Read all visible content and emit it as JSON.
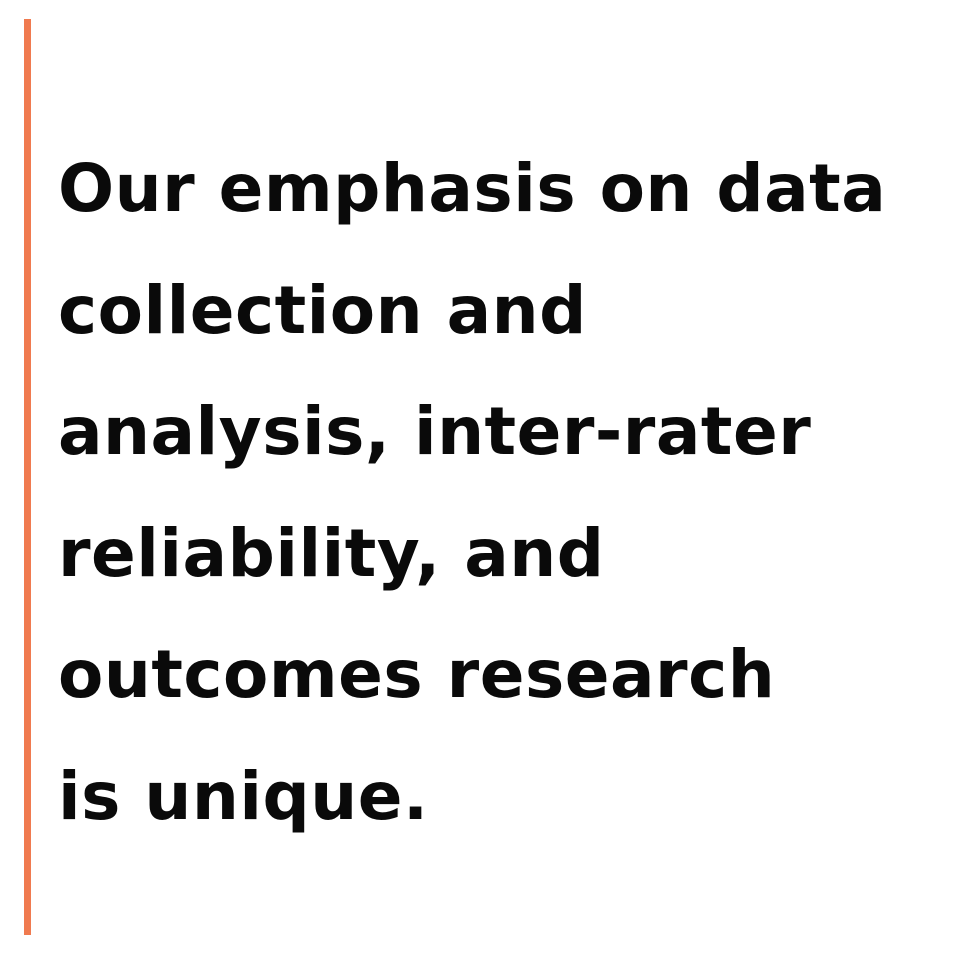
{
  "accent_color": "#f07a4f",
  "text_color": "#0a0a0a",
  "background_color": "#ffffff",
  "quote": {
    "lines": [
      "Our emphasis on data",
      "collection and",
      "analysis, inter-rater",
      "reliability, and",
      "outcomes research",
      "is unique."
    ]
  }
}
